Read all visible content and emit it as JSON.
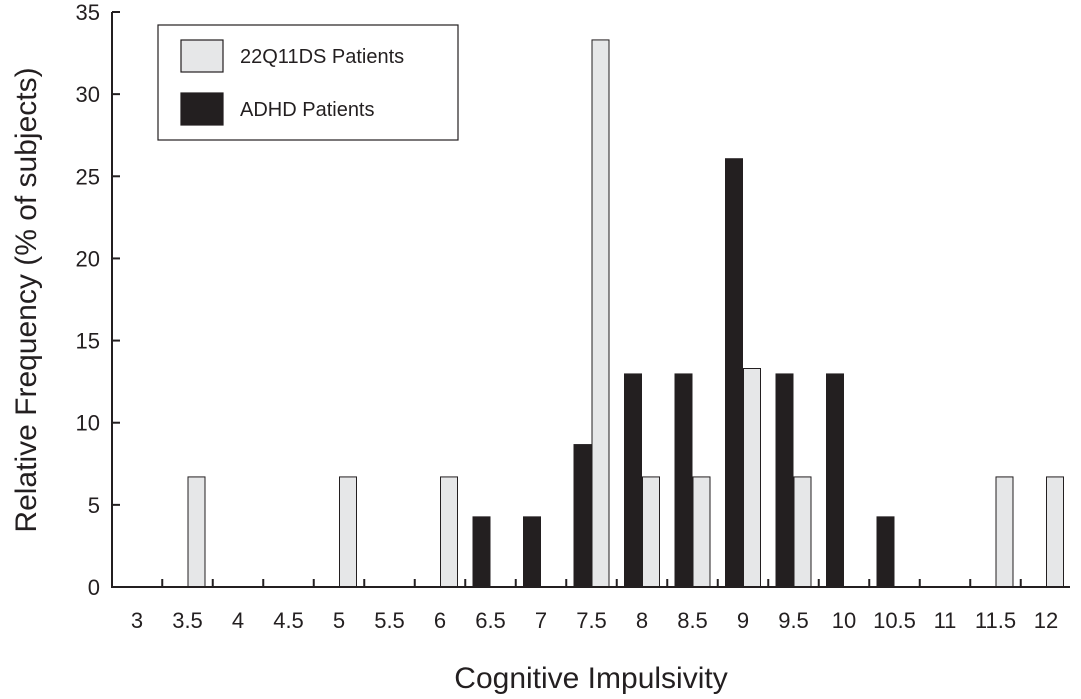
{
  "chart_data": {
    "type": "bar",
    "xlabel": "Cognitive Impulsivity",
    "ylabel": "Relative Frequency (% of subjects)",
    "ylim": [
      0,
      35
    ],
    "yticks": [
      "0",
      "5",
      "10",
      "15",
      "20",
      "25",
      "30",
      "35"
    ],
    "categories": [
      "3",
      "3.5",
      "4",
      "4.5",
      "5",
      "5.5",
      "6",
      "6.5",
      "7",
      "7.5",
      "8",
      "8.5",
      "9",
      "9.5",
      "10",
      "10.5",
      "11",
      "11.5",
      "12"
    ],
    "series": [
      {
        "name": "22Q11DS Patients",
        "color": "#e6e7e8",
        "values": [
          0,
          6.7,
          0,
          0,
          6.7,
          0,
          6.7,
          0,
          0,
          33.3,
          6.7,
          6.7,
          13.3,
          6.7,
          0,
          0,
          0,
          6.7,
          6.7
        ]
      },
      {
        "name": "ADHD Patients",
        "color": "#231f20",
        "values": [
          0,
          0,
          0,
          0,
          0,
          0,
          0,
          4.3,
          4.3,
          8.7,
          13.0,
          13.0,
          26.1,
          13.0,
          13.0,
          4.3,
          0,
          0,
          0
        ]
      }
    ],
    "legend_position": "top-left",
    "grid": false
  }
}
